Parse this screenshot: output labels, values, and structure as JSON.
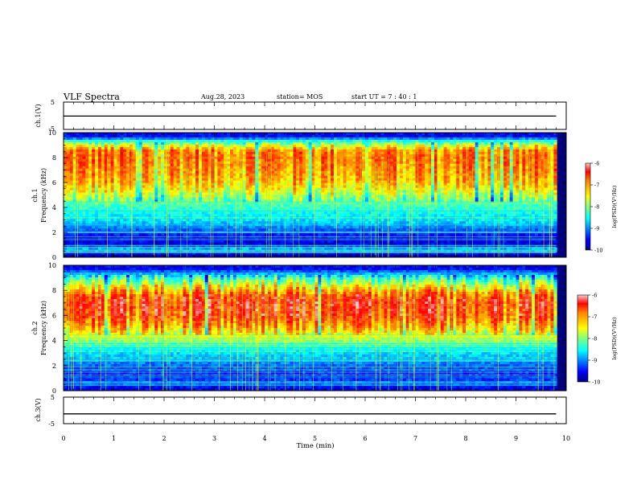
{
  "header": {
    "title": "VLF Spectra",
    "date": "Aug.28, 2023",
    "station": "station= MOS",
    "start": "start  UT =   7 : 40 : 1"
  },
  "chart_data": [
    {
      "type": "line",
      "name": "ch1-voltage",
      "ylabel": "ch.1(V)",
      "ylim": [
        -5,
        5
      ],
      "yticks": [
        "5",
        "-5"
      ],
      "x": [
        0,
        9.8
      ],
      "y": [
        -0.1,
        -0.1
      ]
    },
    {
      "type": "heatmap",
      "name": "ch1-spectrogram",
      "ylabel": "ch.1\nFrequency (kHz)",
      "ylabel_lines": [
        "ch.1",
        "Frequency (kHz)"
      ],
      "ylim": [
        0,
        10
      ],
      "yticks": [
        "0",
        "2",
        "4",
        "6",
        "8",
        "10"
      ],
      "xlim": [
        0,
        9.8
      ],
      "colorbar": {
        "label": "log(PSD)(V²/Hz)",
        "range": [
          -10,
          -6
        ],
        "ticks": [
          "-6",
          "-7",
          "-8",
          "-9",
          "-10"
        ]
      },
      "profile": [
        {
          "f": 0.2,
          "v": -9.8
        },
        {
          "f": 0.6,
          "v": -8.6
        },
        {
          "f": 1.0,
          "v": -9.6
        },
        {
          "f": 1.5,
          "v": -9.5
        },
        {
          "f": 2.0,
          "v": -9.3
        },
        {
          "f": 2.6,
          "v": -8.8
        },
        {
          "f": 3.0,
          "v": -8.6
        },
        {
          "f": 3.5,
          "v": -8.5
        },
        {
          "f": 4.0,
          "v": -8.3
        },
        {
          "f": 4.6,
          "v": -8.0
        },
        {
          "f": 5.2,
          "v": -7.6
        },
        {
          "f": 6.0,
          "v": -7.2
        },
        {
          "f": 7.0,
          "v": -7.0
        },
        {
          "f": 8.0,
          "v": -6.9
        },
        {
          "f": 8.6,
          "v": -7.0
        },
        {
          "f": 9.2,
          "v": -8.0
        },
        {
          "f": 9.7,
          "v": -9.5
        }
      ]
    },
    {
      "type": "heatmap",
      "name": "ch2-spectrogram",
      "ylabel": "ch.2\nFrequency (kHz)",
      "ylabel_lines": [
        "ch.2",
        "Frequency (kHz)"
      ],
      "ylim": [
        0,
        10
      ],
      "yticks": [
        "0",
        "2",
        "4",
        "6",
        "8",
        "10"
      ],
      "xlim": [
        0,
        9.8
      ],
      "colorbar": {
        "label": "log(PSD)(V²/Hz)",
        "range": [
          -10,
          -6
        ],
        "ticks": [
          "-6",
          "-7",
          "-8",
          "-9",
          "-10"
        ]
      },
      "profile": [
        {
          "f": 0.2,
          "v": -9.6
        },
        {
          "f": 0.6,
          "v": -9.0
        },
        {
          "f": 1.0,
          "v": -9.4
        },
        {
          "f": 1.5,
          "v": -9.3
        },
        {
          "f": 2.0,
          "v": -9.1
        },
        {
          "f": 2.6,
          "v": -8.8
        },
        {
          "f": 3.0,
          "v": -8.6
        },
        {
          "f": 3.5,
          "v": -8.3
        },
        {
          "f": 4.0,
          "v": -7.9
        },
        {
          "f": 4.6,
          "v": -7.4
        },
        {
          "f": 5.2,
          "v": -7.0
        },
        {
          "f": 6.0,
          "v": -6.6
        },
        {
          "f": 7.0,
          "v": -6.5
        },
        {
          "f": 7.6,
          "v": -6.7
        },
        {
          "f": 8.3,
          "v": -7.4
        },
        {
          "f": 9.0,
          "v": -8.2
        },
        {
          "f": 9.7,
          "v": -9.5
        }
      ]
    },
    {
      "type": "line",
      "name": "ch3-voltage",
      "ylabel": "ch.3(V)",
      "ylim": [
        -5,
        5
      ],
      "yticks": [
        "5",
        "-5"
      ],
      "x": [
        0,
        9.8
      ],
      "y": [
        -1.3,
        -1.3
      ]
    }
  ],
  "xaxis": {
    "label": "Time  (min)",
    "xlim": [
      0,
      10
    ],
    "ticks": [
      "0",
      "1",
      "2",
      "3",
      "4",
      "5",
      "6",
      "7",
      "8",
      "9",
      "10"
    ]
  },
  "colors": {
    "jet": [
      "#00007f",
      "#0000ff",
      "#007fff",
      "#00ffff",
      "#7fff7f",
      "#ffff00",
      "#ff7f00",
      "#ff0000",
      "#ffc8c8"
    ]
  }
}
